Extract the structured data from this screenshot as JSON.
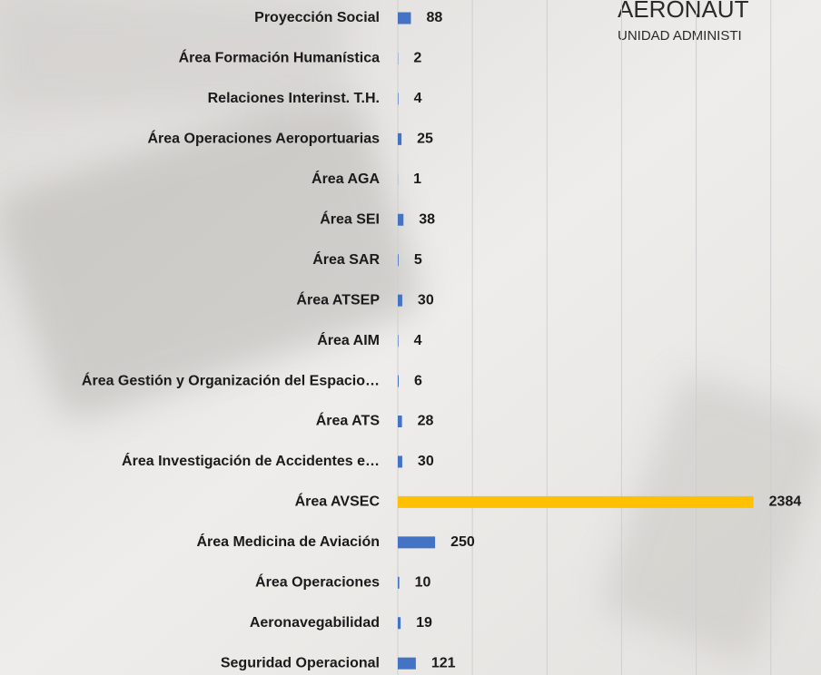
{
  "chart_data": {
    "type": "barh",
    "annotations": [
      "AERONAUT",
      "UNIDAD ADMINISTI"
    ],
    "categories": [
      "Proyección Social",
      "Área Formación Humanística",
      "Relaciones Interinst. T.H.",
      "Área Operaciones Aeroportuarias",
      "Área AGA",
      "Área SEI",
      "Área SAR",
      "Área ATSEP",
      "Área AIM",
      "Área Gestión y Organización del Espacio…",
      "Área  ATS",
      "Área Investigación de Accidentes e…",
      "Área AVSEC",
      "Área Medicina de Aviación",
      "Área Operaciones",
      "Aeronavegabilidad",
      "Seguridad Operacional"
    ],
    "values": [
      88,
      2,
      4,
      25,
      1,
      38,
      5,
      30,
      4,
      6,
      28,
      30,
      2384,
      250,
      10,
      19,
      121
    ],
    "colors": [
      "#4472c4",
      "#4472c4",
      "#4472c4",
      "#4472c4",
      "#4472c4",
      "#4472c4",
      "#4472c4",
      "#4472c4",
      "#4472c4",
      "#4472c4",
      "#4472c4",
      "#4472c4",
      "#ffc000",
      "#4472c4",
      "#4472c4",
      "#4472c4",
      "#4472c4"
    ],
    "xlim": [
      0,
      2800
    ],
    "xticks": [
      0,
      500,
      1000,
      1500,
      2000,
      2500
    ],
    "grid": true
  }
}
